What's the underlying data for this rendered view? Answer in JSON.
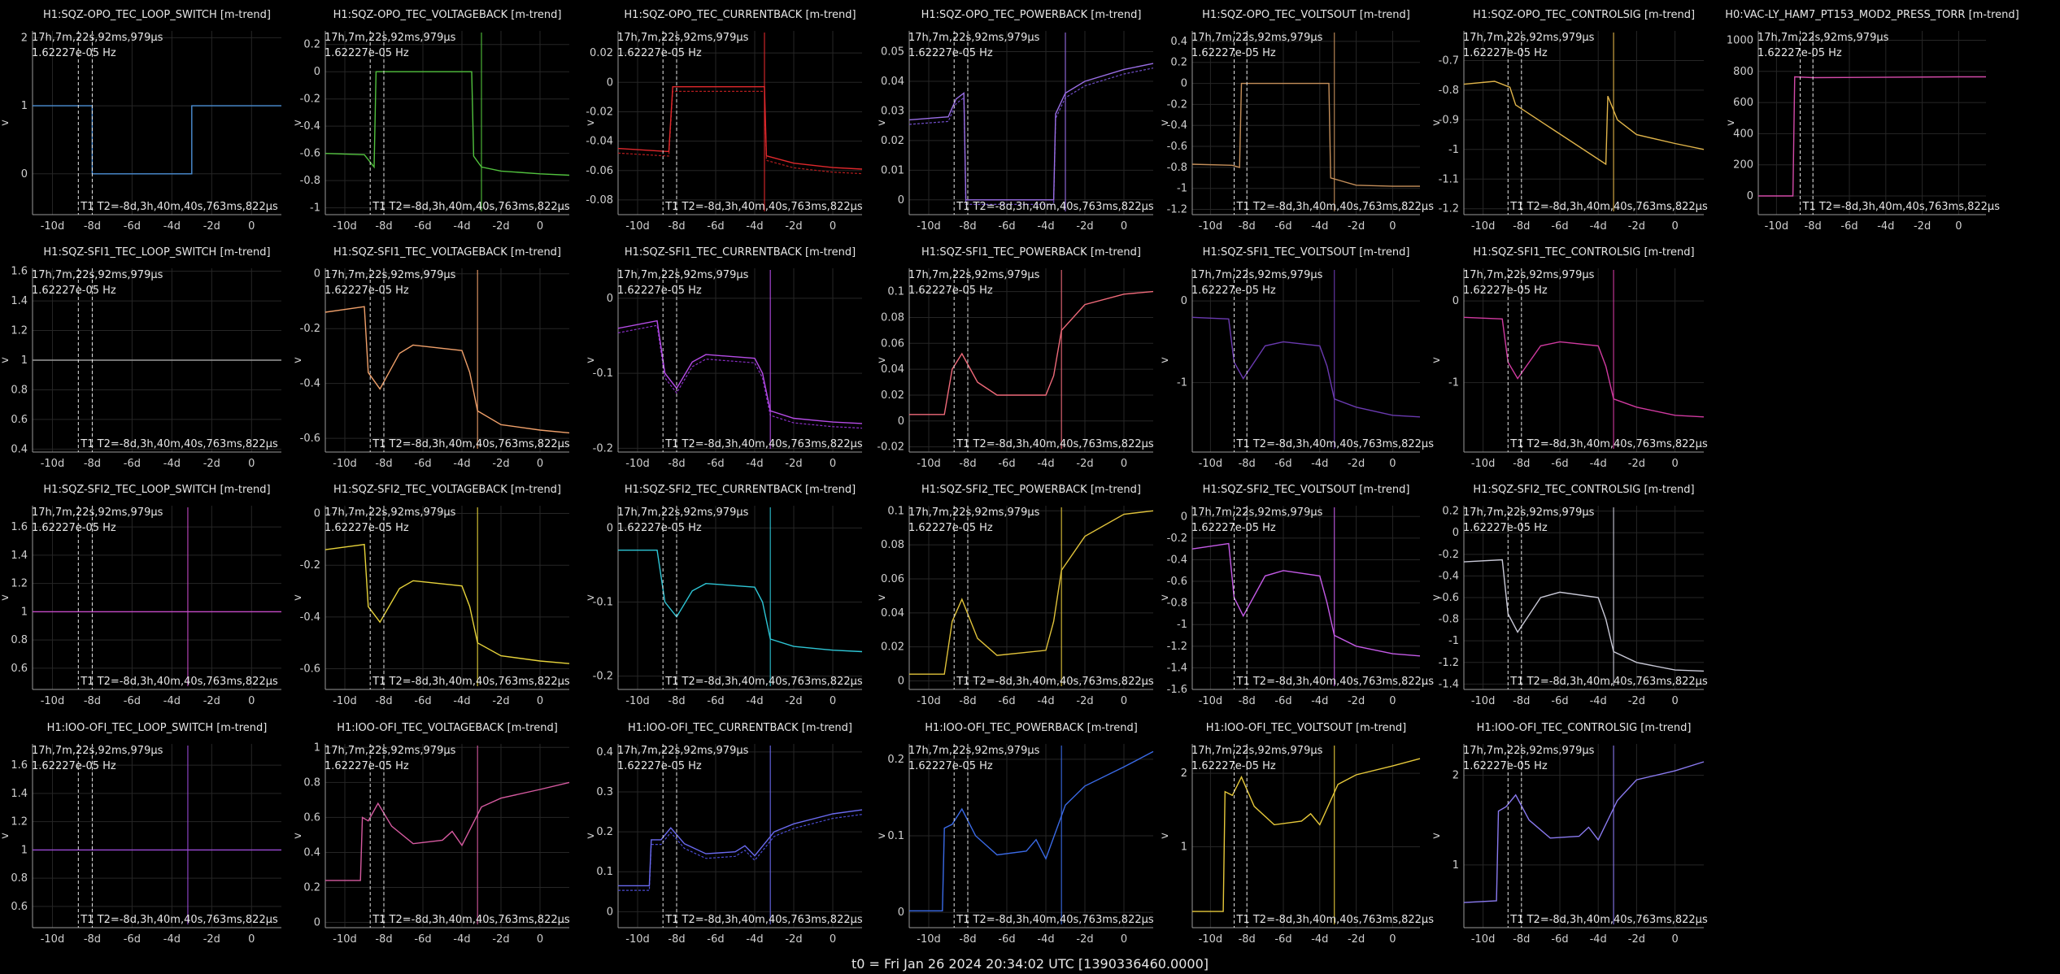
{
  "footer": "t0 = Fri Jan 26 2024 20:34:02 UTC [1390336460.0000]",
  "common": {
    "ylabel": "v",
    "xticks": [
      -10,
      -8,
      -6,
      -4,
      -2,
      0
    ],
    "xtick_labels": [
      "-10d",
      "-8d",
      "-6d",
      "-4d",
      "-2d",
      "0"
    ],
    "xlim": [
      -11,
      1.5
    ],
    "cursor_t1": -8.7,
    "cursor_t2": -8.0,
    "cursor_label": "T1 T2=-8d,3h,40m,40s,763ms,822µs",
    "info_line1": "17h,7m,22s,92ms,979µs",
    "info_line2": "1.62227e-05 Hz"
  },
  "chart_data": [
    {
      "type": "line",
      "title": "H1:SQZ-OPO_TEC_LOOP_SWITCH [m-trend]",
      "ylim": [
        -0.6,
        2.1
      ],
      "yticks": [
        0,
        1,
        2
      ],
      "ytick_labels": [
        "0",
        "1",
        "2"
      ],
      "colors": [
        "#4c8fd6"
      ],
      "x": [
        -11,
        -8,
        -8,
        -3,
        -3,
        1.5
      ],
      "y": [
        1,
        1,
        0,
        0,
        1,
        1
      ],
      "spike": null
    },
    {
      "type": "line",
      "title": "H1:SQZ-OPO_TEC_VOLTAGEBACK [m-trend]",
      "ylim": [
        -1.05,
        0.3
      ],
      "yticks": [
        -1,
        -0.8,
        -0.6,
        -0.4,
        -0.2,
        0,
        0.2
      ],
      "ytick_labels": [
        "-1",
        "-0.8",
        "-0.6",
        "-0.4",
        "-0.2",
        "0",
        "0.2"
      ],
      "colors": [
        "#52c23e"
      ],
      "x": [
        -11,
        -9,
        -8.5,
        -8.4,
        -3.5,
        -3.4,
        -3,
        -2,
        0,
        1.5
      ],
      "y": [
        -0.6,
        -0.61,
        -0.7,
        0,
        0,
        -0.62,
        -0.7,
        -0.73,
        -0.75,
        -0.76
      ],
      "spike": -3
    },
    {
      "type": "line",
      "title": "H1:SQZ-OPO_TEC_CURRENTBACK [m-trend]",
      "ylim": [
        -0.09,
        0.035
      ],
      "yticks": [
        -0.08,
        -0.06,
        -0.04,
        -0.02,
        0,
        0.02
      ],
      "ytick_labels": [
        "-0.08",
        "-0.06",
        "-0.04",
        "-0.02",
        "0",
        "0.02"
      ],
      "colors": [
        "#e0282c",
        "#b31c1e"
      ],
      "x": [
        -11,
        -8.5,
        -8.4,
        -8.2,
        -3.5,
        -3.4,
        -2,
        0,
        1.5
      ],
      "y": [
        -0.045,
        -0.047,
        -0.047,
        -0.003,
        -0.003,
        -0.05,
        -0.055,
        -0.058,
        -0.059
      ],
      "spike": -3.5
    },
    {
      "type": "line",
      "title": "H1:SQZ-OPO_TEC_POWERBACK [m-trend]",
      "ylim": [
        -0.005,
        0.057
      ],
      "yticks": [
        0,
        0.01,
        0.02,
        0.03,
        0.04,
        0.05
      ],
      "ytick_labels": [
        "0",
        "0.01",
        "0.02",
        "0.03",
        "0.04",
        "0.05"
      ],
      "colors": [
        "#9a6ee6",
        "#6e4cc6"
      ],
      "x": [
        -11,
        -9,
        -8.6,
        -8.2,
        -8.1,
        -3.6,
        -3.5,
        -3,
        -2,
        0,
        1.5
      ],
      "y": [
        0.027,
        0.028,
        0.034,
        0.036,
        0,
        0,
        0.029,
        0.036,
        0.04,
        0.044,
        0.046
      ],
      "spike": -3
    },
    {
      "type": "line",
      "title": "H1:SQZ-OPO_TEC_VOLTSOUT [m-trend]",
      "ylim": [
        -1.25,
        0.5
      ],
      "yticks": [
        -1.2,
        -1,
        -0.8,
        -0.6,
        -0.4,
        -0.2,
        0,
        0.2,
        0.4
      ],
      "ytick_labels": [
        "-1.2",
        "-1",
        "-0.8",
        "-0.6",
        "-0.4",
        "-0.2",
        "0",
        "0.2",
        "0.4"
      ],
      "colors": [
        "#c58f5a"
      ],
      "x": [
        -11,
        -8.8,
        -8.4,
        -8.3,
        -3.5,
        -3.4,
        -2,
        0,
        1.5
      ],
      "y": [
        -0.77,
        -0.78,
        -0.8,
        0,
        0,
        -0.9,
        -0.97,
        -0.98,
        -0.98
      ],
      "spike": -3.2
    },
    {
      "type": "line",
      "title": "H1:SQZ-OPO_TEC_CONTROLSIG [m-trend]",
      "ylim": [
        -1.22,
        -0.6
      ],
      "yticks": [
        -1.2,
        -1.1,
        -1,
        -0.9,
        -0.8,
        -0.7
      ],
      "ytick_labels": [
        "-1.2",
        "-1.1",
        "-1",
        "-0.9",
        "-0.8",
        "-0.7"
      ],
      "colors": [
        "#e0b44a"
      ],
      "x": [
        -11,
        -9.4,
        -8.6,
        -8.3,
        -3.6,
        -3.5,
        -3,
        -2,
        0,
        1.5
      ],
      "y": [
        -0.78,
        -0.77,
        -0.79,
        -0.85,
        -1.05,
        -0.82,
        -0.9,
        -0.95,
        -0.98,
        -1
      ],
      "spike": -3.2
    },
    {
      "type": "line",
      "title": "H0:VAC-LY_HAM7_PT153_MOD2_PRESS_TORR [m-trend]",
      "ylim": [
        -120,
        1060
      ],
      "yticks": [
        0,
        200,
        400,
        600,
        800,
        1000
      ],
      "ytick_labels": [
        "0",
        "200",
        "400",
        "600",
        "800",
        "1000"
      ],
      "colors": [
        "#d24aa8"
      ],
      "x": [
        -11,
        -9.1,
        -9,
        -8,
        0,
        1.5
      ],
      "y": [
        0,
        0,
        765,
        760,
        765,
        765
      ],
      "spike": null
    },
    {
      "type": "line",
      "title": "H1:SQZ-SFI1_TEC_LOOP_SWITCH [m-trend]",
      "ylim": [
        0.38,
        1.62
      ],
      "yticks": [
        0.4,
        0.6,
        0.8,
        1,
        1.2,
        1.4,
        1.6
      ],
      "ytick_labels": [
        "0.4",
        "0.6",
        "0.8",
        "1",
        "1.2",
        "1.4",
        "1.6"
      ],
      "colors": [
        "#9a9a9a"
      ],
      "x": [
        -11,
        1.5
      ],
      "y": [
        1,
        1
      ],
      "spike": null
    },
    {
      "type": "line",
      "title": "H1:SQZ-SFI1_TEC_VOLTAGEBACK [m-trend]",
      "ylim": [
        -0.65,
        0.02
      ],
      "yticks": [
        -0.6,
        -0.4,
        -0.2,
        0
      ],
      "ytick_labels": [
        "-0.6",
        "-0.4",
        "-0.2",
        "0"
      ],
      "colors": [
        "#f0a06a"
      ],
      "x": [
        -11,
        -9,
        -8.8,
        -8.2,
        -7.2,
        -6.5,
        -4,
        -3.6,
        -3.2,
        -2,
        0,
        1.5
      ],
      "y": [
        -0.14,
        -0.12,
        -0.36,
        -0.42,
        -0.29,
        -0.26,
        -0.28,
        -0.36,
        -0.5,
        -0.55,
        -0.57,
        -0.58
      ],
      "spike": -3.2
    },
    {
      "type": "line",
      "title": "H1:SQZ-SFI1_TEC_CURRENTBACK [m-trend]",
      "ylim": [
        -0.205,
        0.04
      ],
      "yticks": [
        -0.2,
        -0.1,
        0
      ],
      "ytick_labels": [
        "-0.2",
        "-0.1",
        "0"
      ],
      "colors": [
        "#b54ce6",
        "#8a2ec6"
      ],
      "x": [
        -11,
        -9,
        -8.6,
        -8,
        -7.2,
        -6.5,
        -4,
        -3.6,
        -3.2,
        -2,
        0,
        1.5
      ],
      "y": [
        -0.04,
        -0.03,
        -0.1,
        -0.12,
        -0.085,
        -0.075,
        -0.08,
        -0.1,
        -0.15,
        -0.16,
        -0.165,
        -0.167
      ],
      "spike": -3.2
    },
    {
      "type": "line",
      "title": "H1:SQZ-SFI1_TEC_POWERBACK [m-trend]",
      "ylim": [
        -0.024,
        0.118
      ],
      "yticks": [
        -0.02,
        0,
        0.02,
        0.04,
        0.06,
        0.08,
        0.1
      ],
      "ytick_labels": [
        "-0.02",
        "0",
        "0.02",
        "0.04",
        "0.06",
        "0.08",
        "0.1"
      ],
      "colors": [
        "#f06a7a"
      ],
      "x": [
        -11,
        -9.2,
        -8.8,
        -8.3,
        -7.5,
        -6.5,
        -4,
        -3.6,
        -3.2,
        -2,
        0,
        1.5
      ],
      "y": [
        0.005,
        0.005,
        0.04,
        0.052,
        0.03,
        0.02,
        0.02,
        0.035,
        0.07,
        0.09,
        0.098,
        0.1
      ],
      "spike": -3.2
    },
    {
      "type": "line",
      "title": "H1:SQZ-SFI1_TEC_VOLTSOUT [m-trend]",
      "ylim": [
        -1.85,
        0.4
      ],
      "yticks": [
        -1,
        0
      ],
      "ytick_labels": [
        "-1",
        "0"
      ],
      "colors": [
        "#6a3ab0"
      ],
      "x": [
        -11,
        -9,
        -8.7,
        -8.2,
        -7,
        -6,
        -4,
        -3.6,
        -3.2,
        -2,
        0,
        1.5
      ],
      "y": [
        -0.2,
        -0.22,
        -0.75,
        -0.95,
        -0.55,
        -0.5,
        -0.55,
        -0.8,
        -1.2,
        -1.3,
        -1.4,
        -1.42
      ],
      "spike": -3.2
    },
    {
      "type": "line",
      "title": "H1:SQZ-SFI1_TEC_CONTROLSIG [m-trend]",
      "ylim": [
        -1.85,
        0.4
      ],
      "yticks": [
        -1,
        0
      ],
      "ytick_labels": [
        "-1",
        "0"
      ],
      "colors": [
        "#d03aa0"
      ],
      "x": [
        -11,
        -9,
        -8.7,
        -8.2,
        -7,
        -6,
        -4,
        -3.6,
        -3.2,
        -2,
        0,
        1.5
      ],
      "y": [
        -0.2,
        -0.22,
        -0.75,
        -0.95,
        -0.55,
        -0.5,
        -0.55,
        -0.8,
        -1.2,
        -1.3,
        -1.4,
        -1.42
      ],
      "spike": -3.2
    },
    {
      "type": "line",
      "title": "H1:SQZ-SFI2_TEC_LOOP_SWITCH [m-trend]",
      "ylim": [
        0.45,
        1.75
      ],
      "yticks": [
        0.6,
        0.8,
        1,
        1.2,
        1.4,
        1.6
      ],
      "ytick_labels": [
        "0.6",
        "0.8",
        "1",
        "1.2",
        "1.4",
        "1.6"
      ],
      "colors": [
        "#c44ac6"
      ],
      "x": [
        -11,
        1.5
      ],
      "y": [
        1,
        1
      ],
      "spike": -3.2
    },
    {
      "type": "line",
      "title": "H1:SQZ-SFI2_TEC_VOLTAGEBACK [m-trend]",
      "ylim": [
        -0.68,
        0.03
      ],
      "yticks": [
        -0.6,
        -0.4,
        -0.2,
        0
      ],
      "ytick_labels": [
        "-0.6",
        "-0.4",
        "-0.2",
        "0"
      ],
      "colors": [
        "#e6d23a"
      ],
      "x": [
        -11,
        -9,
        -8.8,
        -8.2,
        -7.2,
        -6.5,
        -4,
        -3.6,
        -3.2,
        -2,
        0,
        1.5
      ],
      "y": [
        -0.14,
        -0.12,
        -0.36,
        -0.42,
        -0.29,
        -0.26,
        -0.28,
        -0.36,
        -0.5,
        -0.55,
        -0.57,
        -0.58
      ],
      "spike": -3.2
    },
    {
      "type": "line",
      "title": "H1:SQZ-SFI2_TEC_CURRENTBACK [m-trend]",
      "ylim": [
        -0.218,
        0.03
      ],
      "yticks": [
        -0.2,
        -0.1,
        0
      ],
      "ytick_labels": [
        "-0.2",
        "-0.1",
        "0"
      ],
      "colors": [
        "#2ec6d6"
      ],
      "x": [
        -11,
        -9,
        -8.6,
        -8,
        -7.2,
        -6.5,
        -4,
        -3.6,
        -3.2,
        -2,
        0,
        1.5
      ],
      "y": [
        -0.03,
        -0.03,
        -0.1,
        -0.12,
        -0.085,
        -0.075,
        -0.08,
        -0.1,
        -0.15,
        -0.16,
        -0.165,
        -0.167
      ],
      "spike": -3.2
    },
    {
      "type": "line",
      "title": "H1:SQZ-SFI2_TEC_POWERBACK [m-trend]",
      "ylim": [
        -0.005,
        0.103
      ],
      "yticks": [
        0,
        0.02,
        0.04,
        0.06,
        0.08,
        0.1
      ],
      "ytick_labels": [
        "0",
        "0.02",
        "0.04",
        "0.06",
        "0.08",
        "0.1"
      ],
      "colors": [
        "#e0c23a"
      ],
      "x": [
        -11,
        -9.2,
        -8.8,
        -8.3,
        -7.5,
        -6.5,
        -4,
        -3.6,
        -3.2,
        -2,
        0,
        1.5
      ],
      "y": [
        0.004,
        0.004,
        0.035,
        0.048,
        0.025,
        0.015,
        0.018,
        0.035,
        0.065,
        0.085,
        0.098,
        0.1
      ],
      "spike": -3.2
    },
    {
      "type": "line",
      "title": "H1:SQZ-SFI2_TEC_VOLTSOUT [m-trend]",
      "ylim": [
        -1.6,
        0.1
      ],
      "yticks": [
        -1.6,
        -1.4,
        -1.2,
        -1,
        -0.8,
        -0.6,
        -0.4,
        -0.2,
        0
      ],
      "ytick_labels": [
        "-1.6",
        "-1.4",
        "-1.2",
        "-1",
        "-0.8",
        "-0.6",
        "-0.4",
        "-0.2",
        "0"
      ],
      "colors": [
        "#c45ae6"
      ],
      "x": [
        -11,
        -9,
        -8.7,
        -8.2,
        -7,
        -6,
        -4,
        -3.6,
        -3.2,
        -2,
        0,
        1.5
      ],
      "y": [
        -0.3,
        -0.25,
        -0.75,
        -0.92,
        -0.55,
        -0.5,
        -0.55,
        -0.8,
        -1.1,
        -1.2,
        -1.27,
        -1.29
      ],
      "spike": -3.2
    },
    {
      "type": "line",
      "title": "H1:SQZ-SFI2_TEC_CONTROLSIG [m-trend]",
      "ylim": [
        -1.45,
        0.25
      ],
      "yticks": [
        -1.4,
        -1.2,
        -1,
        -0.8,
        -0.6,
        -0.4,
        -0.2,
        0,
        0.2
      ],
      "ytick_labels": [
        "-1.4",
        "-1.2",
        "-1",
        "-0.8",
        "-0.6",
        "-0.4",
        "-0.2",
        "0",
        "0.2"
      ],
      "colors": [
        "#c8c8d6"
      ],
      "x": [
        -11,
        -9,
        -8.7,
        -8.2,
        -7,
        -6,
        -4,
        -3.6,
        -3.2,
        -2,
        0,
        1.5
      ],
      "y": [
        -0.27,
        -0.25,
        -0.75,
        -0.92,
        -0.6,
        -0.55,
        -0.6,
        -0.8,
        -1.1,
        -1.2,
        -1.27,
        -1.28
      ],
      "spike": -3.2
    },
    {
      "type": "line",
      "title": "H1:IOO-OFI_TEC_LOOP_SWITCH [m-trend]",
      "ylim": [
        0.45,
        1.75
      ],
      "yticks": [
        0.6,
        0.8,
        1,
        1.2,
        1.4,
        1.6
      ],
      "ytick_labels": [
        "0.6",
        "0.8",
        "1",
        "1.2",
        "1.4",
        "1.6"
      ],
      "colors": [
        "#9a4ad6"
      ],
      "x": [
        -11,
        1.5
      ],
      "y": [
        1,
        1
      ],
      "spike": -3.2
    },
    {
      "type": "line",
      "title": "H1:IOO-OFI_TEC_VOLTAGEBACK [m-trend]",
      "ylim": [
        -0.03,
        1.02
      ],
      "yticks": [
        0,
        0.2,
        0.4,
        0.6,
        0.8,
        1
      ],
      "ytick_labels": [
        "0",
        "0.2",
        "0.4",
        "0.6",
        "0.8",
        "1"
      ],
      "colors": [
        "#d65aa0"
      ],
      "x": [
        -11,
        -9.2,
        -9.1,
        -8.8,
        -8.3,
        -7.6,
        -6.5,
        -5,
        -4.5,
        -4,
        -3,
        -2,
        0,
        1.5
      ],
      "y": [
        0.24,
        0.24,
        0.6,
        0.58,
        0.68,
        0.55,
        0.45,
        0.47,
        0.52,
        0.44,
        0.66,
        0.71,
        0.76,
        0.8
      ],
      "spike": -3.2
    },
    {
      "type": "line",
      "title": "H1:IOO-OFI_TEC_CURRENTBACK [m-trend]",
      "ylim": [
        -0.04,
        0.42
      ],
      "yticks": [
        0,
        0.1,
        0.2,
        0.3,
        0.4
      ],
      "ytick_labels": [
        "0",
        "0.1",
        "0.2",
        "0.3",
        "0.4"
      ],
      "colors": [
        "#6a6af0",
        "#4a4ad0"
      ],
      "x": [
        -11,
        -9.4,
        -9.3,
        -8.8,
        -8.3,
        -7.6,
        -6.5,
        -5,
        -4.5,
        -4,
        -3,
        -2,
        0,
        1.5
      ],
      "y": [
        0.065,
        0.065,
        0.18,
        0.18,
        0.21,
        0.17,
        0.145,
        0.15,
        0.165,
        0.14,
        0.2,
        0.22,
        0.245,
        0.255
      ],
      "spike": -3.2
    },
    {
      "type": "line",
      "title": "H1:IOO-OFI_TEC_POWERBACK [m-trend]",
      "ylim": [
        -0.02,
        0.22
      ],
      "yticks": [
        0,
        0.1,
        0.2
      ],
      "ytick_labels": [
        "0",
        "0.1",
        "0.2"
      ],
      "colors": [
        "#3a6ae6"
      ],
      "x": [
        -11,
        -9.3,
        -9.2,
        -8.8,
        -8.3,
        -7.6,
        -6.5,
        -5,
        -4.5,
        -4,
        -3,
        -2,
        0,
        1.5
      ],
      "y": [
        0.002,
        0.002,
        0.11,
        0.115,
        0.135,
        0.1,
        0.075,
        0.08,
        0.095,
        0.07,
        0.14,
        0.165,
        0.19,
        0.21
      ],
      "spike": -3.2
    },
    {
      "type": "line",
      "title": "H1:IOO-OFI_TEC_VOLTSOUT [m-trend]",
      "ylim": [
        -0.1,
        2.4
      ],
      "yticks": [
        1,
        2
      ],
      "ytick_labels": [
        "1",
        "2"
      ],
      "colors": [
        "#e6c83a"
      ],
      "x": [
        -11,
        -9.3,
        -9.2,
        -8.8,
        -8.3,
        -7.6,
        -6.5,
        -5,
        -4.5,
        -4,
        -3,
        -2,
        0,
        1.5
      ],
      "y": [
        0.12,
        0.12,
        1.75,
        1.7,
        1.95,
        1.55,
        1.3,
        1.35,
        1.45,
        1.3,
        1.85,
        1.98,
        2.1,
        2.2
      ],
      "spike": -3.2
    },
    {
      "type": "line",
      "title": "H1:IOO-OFI_TEC_CONTROLSIG [m-trend]",
      "ylim": [
        0.3,
        2.35
      ],
      "yticks": [
        1,
        2
      ],
      "ytick_labels": [
        "1",
        "2"
      ],
      "colors": [
        "#8a7af0"
      ],
      "x": [
        -11,
        -9.3,
        -9.2,
        -8.8,
        -8.3,
        -7.6,
        -6.5,
        -5,
        -4.5,
        -4,
        -3,
        -2,
        0,
        1.5
      ],
      "y": [
        0.58,
        0.6,
        1.6,
        1.65,
        1.78,
        1.5,
        1.3,
        1.32,
        1.42,
        1.28,
        1.72,
        1.95,
        2.05,
        2.15
      ],
      "spike": -3.2
    }
  ]
}
